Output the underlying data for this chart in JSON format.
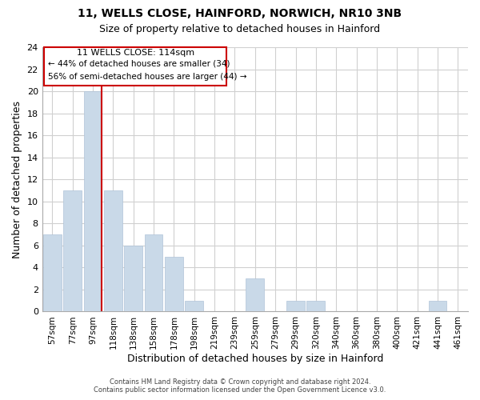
{
  "title1": "11, WELLS CLOSE, HAINFORD, NORWICH, NR10 3NB",
  "title2": "Size of property relative to detached houses in Hainford",
  "xlabel": "Distribution of detached houses by size in Hainford",
  "ylabel": "Number of detached properties",
  "bar_labels": [
    "57sqm",
    "77sqm",
    "97sqm",
    "118sqm",
    "138sqm",
    "158sqm",
    "178sqm",
    "198sqm",
    "219sqm",
    "239sqm",
    "259sqm",
    "279sqm",
    "299sqm",
    "320sqm",
    "340sqm",
    "360sqm",
    "380sqm",
    "400sqm",
    "421sqm",
    "441sqm",
    "461sqm"
  ],
  "bar_values": [
    7,
    11,
    20,
    11,
    6,
    7,
    5,
    1,
    0,
    0,
    3,
    0,
    1,
    1,
    0,
    0,
    0,
    0,
    0,
    1,
    0
  ],
  "bar_color": "#c9d9e8",
  "bar_edge_color": "#b0c4d8",
  "ref_line_color": "#cc0000",
  "ref_line_bar_index": 2,
  "ylim": [
    0,
    24
  ],
  "yticks": [
    0,
    2,
    4,
    6,
    8,
    10,
    12,
    14,
    16,
    18,
    20,
    22,
    24
  ],
  "annotation_title": "11 WELLS CLOSE: 114sqm",
  "annotation_line1": "← 44% of detached houses are smaller (34)",
  "annotation_line2": "56% of semi-detached houses are larger (44) →",
  "annotation_box_color": "#ffffff",
  "annotation_box_edge": "#cc0000",
  "footer1": "Contains HM Land Registry data © Crown copyright and database right 2024.",
  "footer2": "Contains public sector information licensed under the Open Government Licence v3.0.",
  "grid_color": "#d0d0d0",
  "background_color": "#ffffff"
}
